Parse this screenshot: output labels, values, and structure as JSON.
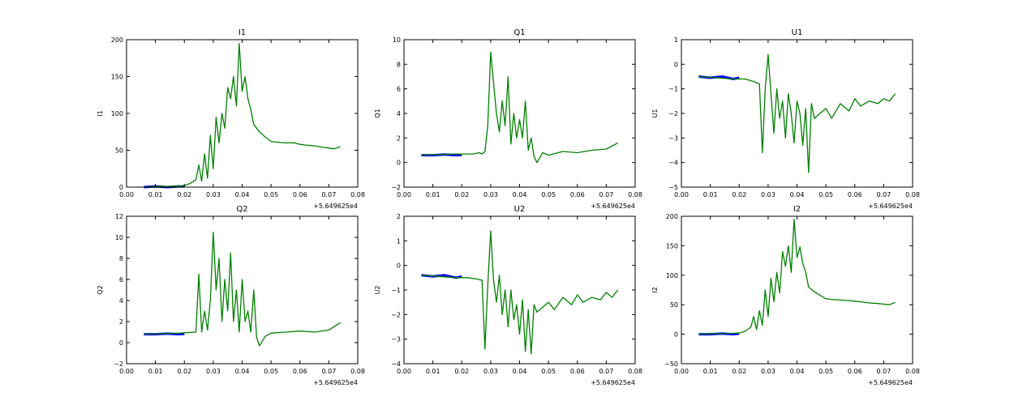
{
  "chart_data": [
    {
      "type": "line",
      "title": "I1",
      "ylabel": "I1",
      "xlim": [
        0.0,
        0.08
      ],
      "ylim": [
        0,
        200
      ],
      "x_ticks": [
        "0.00",
        "0.01",
        "0.02",
        "0.03",
        "0.04",
        "0.05",
        "0.06",
        "0.07",
        "0.08"
      ],
      "y_ticks": [
        "0",
        "50",
        "100",
        "150",
        "200"
      ],
      "x_offset": "+5.649625e4",
      "series": [
        {
          "color": "#0000ff",
          "x": [
            0.006,
            0.01,
            0.014,
            0.018,
            0.02
          ],
          "y": [
            0,
            1,
            0,
            1,
            1
          ]
        },
        {
          "color": "#008000",
          "x": [
            0.006,
            0.01,
            0.015,
            0.02,
            0.022,
            0.024,
            0.025,
            0.026,
            0.027,
            0.028,
            0.029,
            0.03,
            0.031,
            0.032,
            0.033,
            0.034,
            0.035,
            0.036,
            0.037,
            0.038,
            0.039,
            0.04,
            0.041,
            0.042,
            0.043,
            0.044,
            0.046,
            0.048,
            0.05,
            0.052,
            0.055,
            0.058,
            0.06,
            0.062,
            0.065,
            0.068,
            0.07,
            0.072,
            0.074
          ],
          "y": [
            0,
            1,
            1,
            2,
            5,
            10,
            30,
            8,
            45,
            12,
            70,
            25,
            95,
            60,
            100,
            80,
            135,
            120,
            150,
            110,
            195,
            130,
            150,
            120,
            105,
            85,
            75,
            68,
            62,
            61,
            60,
            60,
            58,
            57,
            56,
            54,
            53,
            52,
            55
          ]
        }
      ]
    },
    {
      "type": "line",
      "title": "Q1",
      "ylabel": "Q1",
      "xlim": [
        0.0,
        0.08
      ],
      "ylim": [
        -2,
        10
      ],
      "x_ticks": [
        "0.00",
        "0.01",
        "0.02",
        "0.03",
        "0.04",
        "0.05",
        "0.06",
        "0.07",
        "0.08"
      ],
      "y_ticks": [
        "−2",
        "0",
        "2",
        "4",
        "6",
        "8",
        "10"
      ],
      "x_offset": "+5.649625e4",
      "series": [
        {
          "color": "#0000ff",
          "x": [
            0.006,
            0.01,
            0.014,
            0.018,
            0.02
          ],
          "y": [
            0.6,
            0.6,
            0.65,
            0.6,
            0.62
          ]
        },
        {
          "color": "#008000",
          "x": [
            0.006,
            0.012,
            0.018,
            0.024,
            0.026,
            0.027,
            0.028,
            0.029,
            0.03,
            0.031,
            0.032,
            0.033,
            0.034,
            0.035,
            0.036,
            0.037,
            0.038,
            0.039,
            0.04,
            0.041,
            0.042,
            0.043,
            0.044,
            0.045,
            0.046,
            0.048,
            0.05,
            0.055,
            0.06,
            0.065,
            0.07,
            0.074
          ],
          "y": [
            0.6,
            0.65,
            0.7,
            0.7,
            0.8,
            0.7,
            0.9,
            3,
            9,
            6.5,
            4,
            2.5,
            5,
            3,
            7,
            1.5,
            4,
            2,
            3.5,
            2,
            5,
            1,
            2,
            0.5,
            0,
            0.8,
            0.6,
            0.9,
            0.8,
            1.0,
            1.1,
            1.6
          ]
        }
      ]
    },
    {
      "type": "line",
      "title": "U1",
      "ylabel": "U1",
      "xlim": [
        0.0,
        0.08
      ],
      "ylim": [
        -5,
        1
      ],
      "x_ticks": [
        "0.00",
        "0.01",
        "0.02",
        "0.03",
        "0.04",
        "0.05",
        "0.06",
        "0.07",
        "0.08"
      ],
      "y_ticks": [
        "−5",
        "−4",
        "−3",
        "−2",
        "−1",
        "0",
        "1"
      ],
      "x_offset": "+5.649625e4",
      "series": [
        {
          "color": "#0000ff",
          "x": [
            0.006,
            0.01,
            0.014,
            0.018,
            0.02
          ],
          "y": [
            -0.5,
            -0.55,
            -0.5,
            -0.6,
            -0.55
          ]
        },
        {
          "color": "#008000",
          "x": [
            0.006,
            0.012,
            0.018,
            0.022,
            0.025,
            0.027,
            0.028,
            0.029,
            0.03,
            0.031,
            0.032,
            0.033,
            0.034,
            0.035,
            0.036,
            0.037,
            0.038,
            0.039,
            0.04,
            0.041,
            0.042,
            0.043,
            0.044,
            0.045,
            0.046,
            0.048,
            0.05,
            0.052,
            0.055,
            0.058,
            0.06,
            0.062,
            0.065,
            0.068,
            0.07,
            0.072,
            0.074
          ],
          "y": [
            -0.5,
            -0.55,
            -0.6,
            -0.6,
            -0.7,
            -0.8,
            -3.6,
            -1.0,
            0.4,
            -1.2,
            -2.8,
            -1.0,
            -2.2,
            -1.5,
            -3.0,
            -1.2,
            -2.0,
            -3.2,
            -1.5,
            -2.0,
            -3.3,
            -1.8,
            -4.4,
            -1.6,
            -2.2,
            -2.0,
            -1.8,
            -2.2,
            -1.6,
            -1.9,
            -1.4,
            -1.7,
            -1.5,
            -1.6,
            -1.4,
            -1.5,
            -1.2
          ]
        }
      ]
    },
    {
      "type": "line",
      "title": "Q2",
      "ylabel": "Q2",
      "xlim": [
        0.0,
        0.08
      ],
      "ylim": [
        -2,
        12
      ],
      "x_ticks": [
        "0.00",
        "0.01",
        "0.02",
        "0.03",
        "0.04",
        "0.05",
        "0.06",
        "0.07",
        "0.08"
      ],
      "y_ticks": [
        "−2",
        "0",
        "2",
        "4",
        "6",
        "8",
        "10",
        "12"
      ],
      "x_offset": "+5.649625e4",
      "series": [
        {
          "color": "#0000ff",
          "x": [
            0.006,
            0.01,
            0.014,
            0.018,
            0.02
          ],
          "y": [
            0.8,
            0.8,
            0.85,
            0.8,
            0.82
          ]
        },
        {
          "color": "#008000",
          "x": [
            0.006,
            0.012,
            0.018,
            0.024,
            0.025,
            0.026,
            0.027,
            0.028,
            0.029,
            0.03,
            0.031,
            0.032,
            0.033,
            0.034,
            0.035,
            0.036,
            0.037,
            0.038,
            0.039,
            0.04,
            0.041,
            0.042,
            0.043,
            0.044,
            0.045,
            0.046,
            0.048,
            0.05,
            0.055,
            0.06,
            0.065,
            0.07,
            0.074
          ],
          "y": [
            0.8,
            0.85,
            0.9,
            1.0,
            6.5,
            1.0,
            3,
            1.2,
            4,
            10.5,
            5,
            8,
            2,
            6,
            3,
            8.5,
            2,
            5,
            1,
            6,
            2,
            3,
            1,
            5,
            0.5,
            -0.3,
            0.6,
            0.9,
            1.0,
            1.1,
            1.0,
            1.2,
            1.9
          ]
        }
      ]
    },
    {
      "type": "line",
      "title": "U2",
      "ylabel": "U2",
      "xlim": [
        0.0,
        0.08
      ],
      "ylim": [
        -4,
        2
      ],
      "x_ticks": [
        "0.00",
        "0.01",
        "0.02",
        "0.03",
        "0.04",
        "0.05",
        "0.06",
        "0.07",
        "0.08"
      ],
      "y_ticks": [
        "−4",
        "−3",
        "−2",
        "−1",
        "0",
        "1",
        "2"
      ],
      "x_offset": "+5.649625e4",
      "series": [
        {
          "color": "#0000ff",
          "x": [
            0.006,
            0.01,
            0.014,
            0.018,
            0.02
          ],
          "y": [
            -0.4,
            -0.45,
            -0.4,
            -0.5,
            -0.45
          ]
        },
        {
          "color": "#008000",
          "x": [
            0.006,
            0.012,
            0.018,
            0.022,
            0.025,
            0.027,
            0.028,
            0.029,
            0.03,
            0.031,
            0.032,
            0.033,
            0.034,
            0.035,
            0.036,
            0.037,
            0.038,
            0.039,
            0.04,
            0.041,
            0.042,
            0.043,
            0.044,
            0.045,
            0.046,
            0.048,
            0.05,
            0.052,
            0.055,
            0.058,
            0.06,
            0.062,
            0.065,
            0.068,
            0.07,
            0.072,
            0.074
          ],
          "y": [
            -0.4,
            -0.45,
            -0.5,
            -0.5,
            -0.55,
            -0.6,
            -3.4,
            -0.8,
            1.4,
            -0.6,
            -1.5,
            -0.4,
            -2.0,
            -1.0,
            -2.5,
            -1.0,
            -2.2,
            -1.6,
            -2.8,
            -1.4,
            -3.5,
            -1.8,
            -3.6,
            -1.6,
            -1.9,
            -1.7,
            -1.5,
            -1.8,
            -1.3,
            -1.6,
            -1.2,
            -1.5,
            -1.3,
            -1.4,
            -1.1,
            -1.3,
            -1.0
          ]
        }
      ]
    },
    {
      "type": "line",
      "title": "I2",
      "ylabel": "I2",
      "xlim": [
        0.0,
        0.08
      ],
      "ylim": [
        -50,
        200
      ],
      "x_ticks": [
        "0.00",
        "0.01",
        "0.02",
        "0.03",
        "0.04",
        "0.05",
        "0.06",
        "0.07",
        "0.08"
      ],
      "y_ticks": [
        "−50",
        "0",
        "50",
        "100",
        "150",
        "200"
      ],
      "x_offset": "+5.649625e4",
      "series": [
        {
          "color": "#0000ff",
          "x": [
            0.006,
            0.01,
            0.014,
            0.018,
            0.02
          ],
          "y": [
            0,
            0,
            1,
            0,
            1
          ]
        },
        {
          "color": "#008000",
          "x": [
            0.006,
            0.01,
            0.015,
            0.02,
            0.022,
            0.024,
            0.025,
            0.026,
            0.027,
            0.028,
            0.029,
            0.03,
            0.031,
            0.032,
            0.033,
            0.034,
            0.035,
            0.036,
            0.037,
            0.038,
            0.039,
            0.04,
            0.041,
            0.042,
            0.043,
            0.044,
            0.046,
            0.048,
            0.05,
            0.052,
            0.055,
            0.058,
            0.06,
            0.062,
            0.065,
            0.068,
            0.07,
            0.072,
            0.074
          ],
          "y": [
            0,
            1,
            1,
            2,
            5,
            12,
            30,
            8,
            40,
            15,
            75,
            30,
            95,
            55,
            105,
            70,
            140,
            115,
            150,
            105,
            195,
            130,
            148,
            120,
            105,
            80,
            72,
            66,
            60,
            59,
            58,
            57,
            56,
            55,
            53,
            52,
            51,
            50,
            54
          ]
        }
      ]
    }
  ]
}
